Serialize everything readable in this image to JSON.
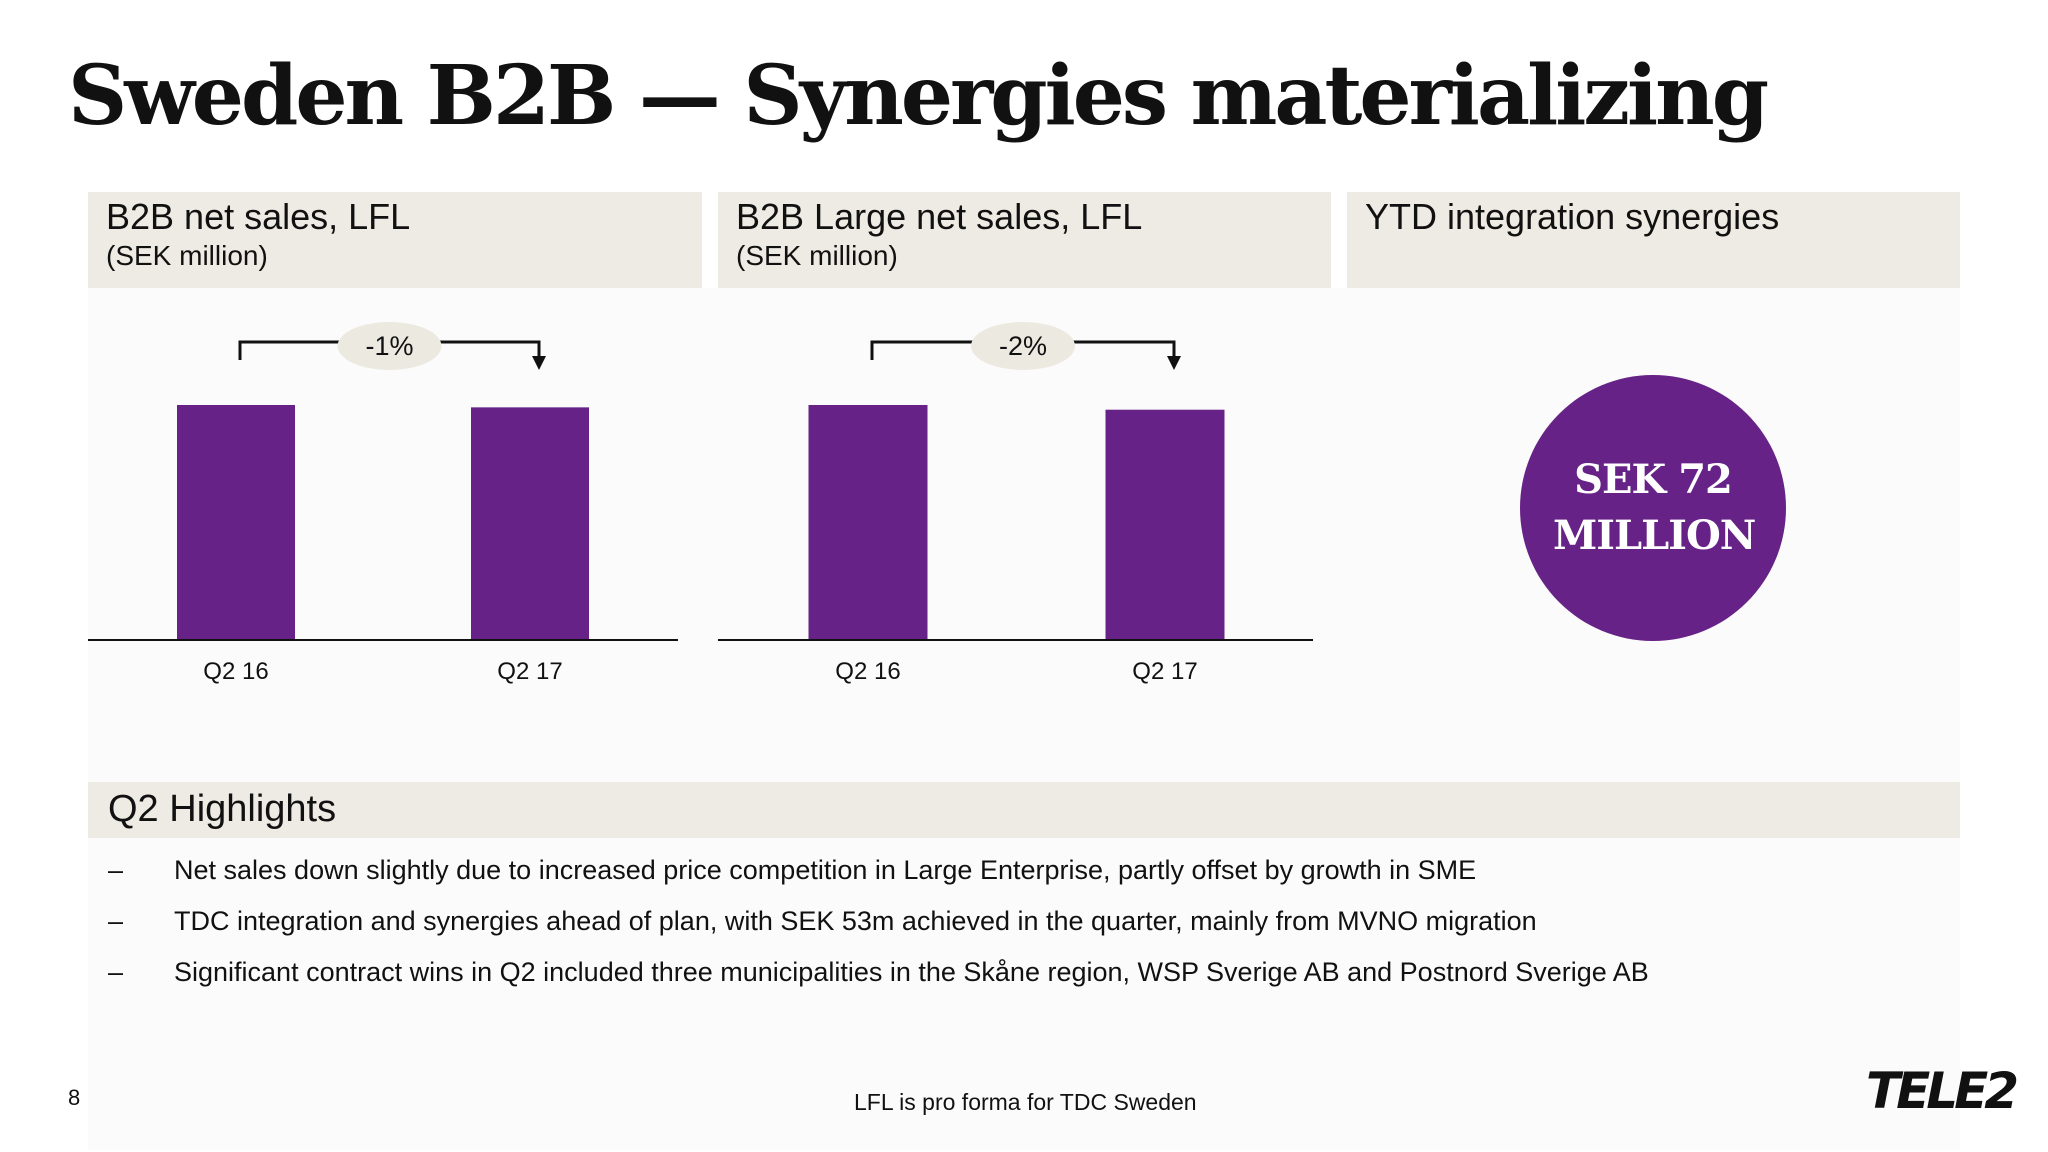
{
  "title": "Sweden B2B — Synergies materializing",
  "panels": [
    {
      "title": "B2B net sales, LFL",
      "unit": "(SEK million)"
    },
    {
      "title": "B2B Large net sales, LFL",
      "unit": "(SEK million)"
    },
    {
      "title": "YTD integration synergies"
    }
  ],
  "synergy_value": "SEK 72\nMILLION",
  "chart_data": [
    {
      "type": "bar",
      "title": "B2B net sales, LFL",
      "ylabel": "(SEK million)",
      "categories": [
        "Q2 16",
        "Q2 17"
      ],
      "values": [
        100,
        99
      ],
      "change_label": "-1%"
    },
    {
      "type": "bar",
      "title": "B2B Large net sales, LFL",
      "ylabel": "(SEK million)",
      "categories": [
        "Q2 16",
        "Q2 17"
      ],
      "values": [
        100,
        98
      ],
      "change_label": "-2%"
    }
  ],
  "highlights": {
    "title": "Q2 Highlights",
    "bullet_marker": "–",
    "items": [
      "Net sales down slightly due to increased price competition in Large Enterprise, partly offset by growth in SME",
      "TDC integration and synergies ahead of plan, with SEK 53m achieved in the quarter, mainly from MVNO migration",
      "Significant contract wins in Q2 included three municipalities in the Skåne region, WSP Sverige AB and Postnord Sverige AB"
    ]
  },
  "page_number": "8",
  "footnote": "LFL is pro forma for TDC Sweden",
  "logo_text": "TELE2",
  "colors": {
    "bar": "#672287",
    "header_bg": "#edebe3",
    "circle": "#672287",
    "pill": "#ebe9e0"
  }
}
